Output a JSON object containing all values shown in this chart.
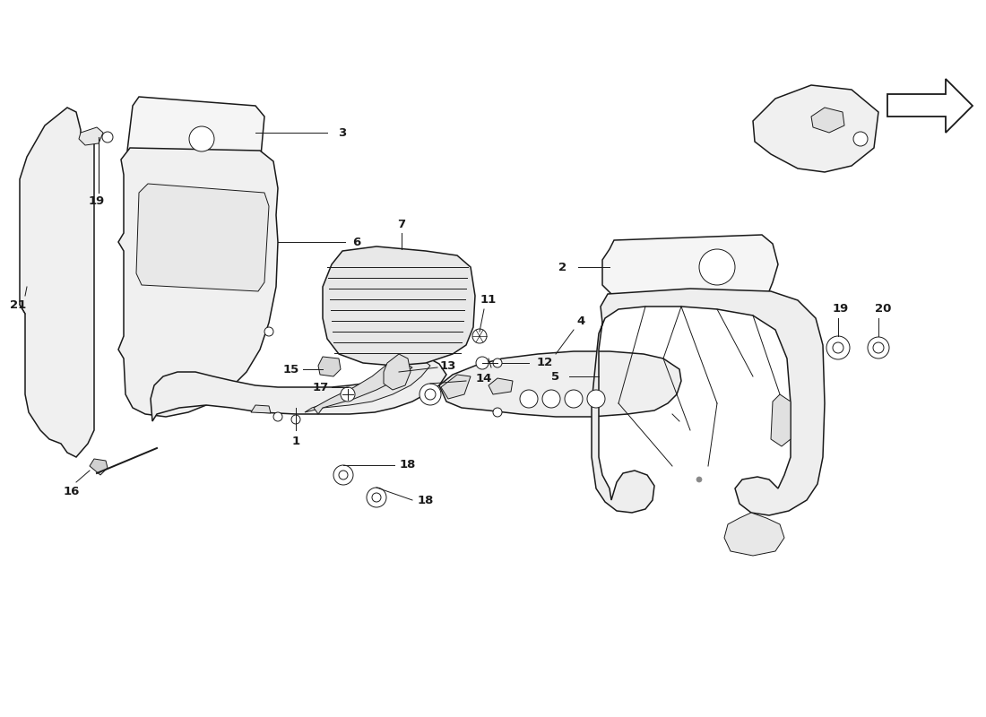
{
  "background_color": "#ffffff",
  "line_color": "#1a1a1a",
  "figsize": [
    11.0,
    8.0
  ],
  "dpi": 100,
  "xlim": [
    0,
    1100
  ],
  "ylim": [
    0,
    800
  ]
}
